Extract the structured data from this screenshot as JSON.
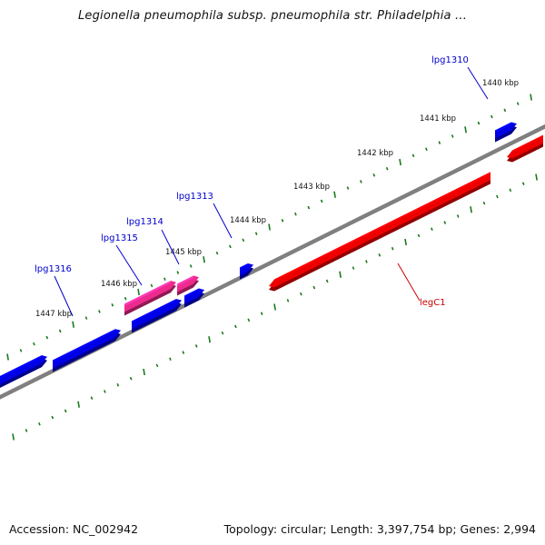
{
  "title": "Legionella pneumophila subsp. pneumophila str. Philadelphia ...",
  "footer": {
    "accession": "Accession: NC_002942",
    "stats": "Topology: circular; Length: 3,397,754 bp; Genes: 2,994"
  },
  "colors": {
    "backbone": "#808080",
    "ticks": "#1a7a1a",
    "gene_forward": "#0000e6",
    "gene_reverse": "#ee0000",
    "gene_pink": "#ee2a8c",
    "label_blue": "#0000cc",
    "label_red": "#cc0000"
  },
  "scale_labels": [
    "1447 kbp",
    "1446 kbp",
    "1445 kbp",
    "1444 kbp",
    "1443 kbp",
    "1442 kbp",
    "1441 kbp",
    "1440 kbp"
  ],
  "gene_labels": [
    {
      "id": "lpg1316",
      "text": "lpg1316",
      "color": "blue"
    },
    {
      "id": "lpg1315",
      "text": "lpg1315",
      "color": "blue"
    },
    {
      "id": "lpg1314",
      "text": "lpg1314",
      "color": "blue"
    },
    {
      "id": "lpg1313",
      "text": "lpg1313",
      "color": "blue"
    },
    {
      "id": "lpg1310",
      "text": "lpg1310",
      "color": "blue"
    },
    {
      "id": "legC1",
      "text": "legC1",
      "color": "red"
    }
  ]
}
